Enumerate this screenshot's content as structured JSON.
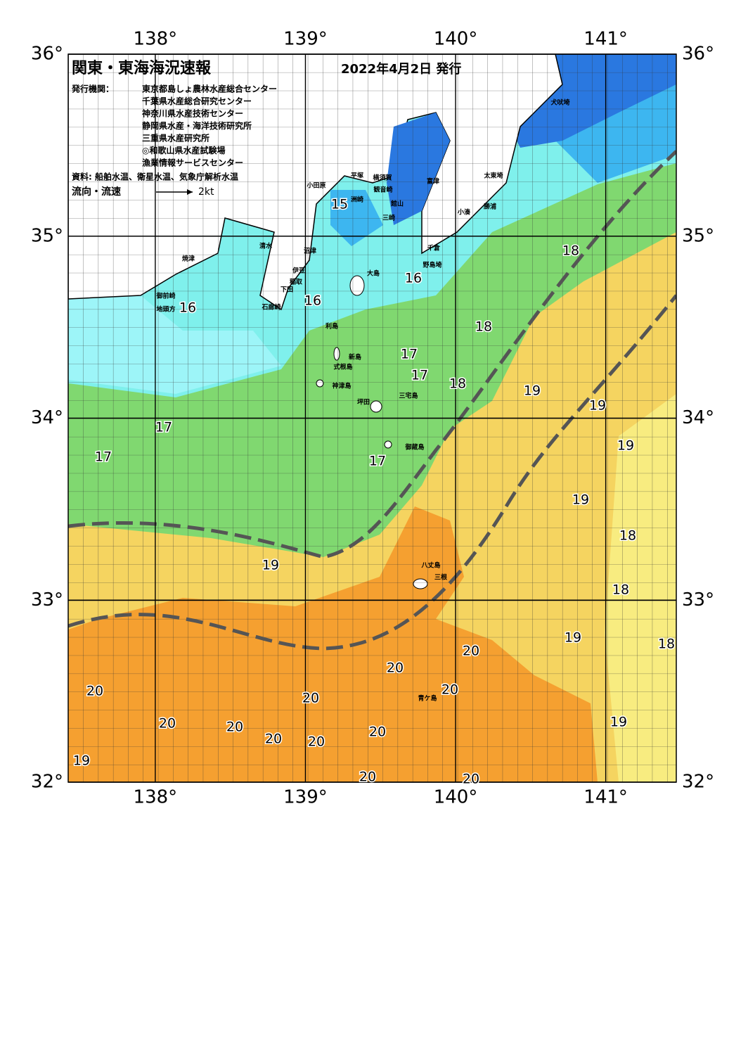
{
  "header": {
    "title": "関東・東海海況速報",
    "date": "2022年4月2日 発行",
    "issuer_label": "発行機関：",
    "issuers": [
      "東京都島しょ農林水産総合センター",
      "千葉県水産総合研究センター",
      "神奈川県水産技術センター",
      "静岡県水産・海洋技術研究所",
      "三重県水産研究所",
      "◎和歌山県水産試験場",
      "漁業情報サービスセンター"
    ],
    "sources": "資料: 船舶水温、衛星水温、気象庁解析水温",
    "current_label": "流向・流速",
    "current_scale": "2kt"
  },
  "map": {
    "lon_ticks": [
      {
        "value": 138,
        "label": "138°"
      },
      {
        "value": 139,
        "label": "139°"
      },
      {
        "value": 140,
        "label": "140°"
      },
      {
        "value": 141,
        "label": "141°"
      }
    ],
    "lat_ticks": [
      {
        "value": 36,
        "label": "36°"
      },
      {
        "value": 35,
        "label": "35°"
      },
      {
        "value": 34,
        "label": "34°"
      },
      {
        "value": 33,
        "label": "33°"
      },
      {
        "value": 32,
        "label": "32°"
      }
    ],
    "lonlim": [
      137.42,
      141.47
    ],
    "latlim": [
      32,
      36
    ],
    "temperature_labels": [
      15,
      16,
      16,
      16,
      18,
      18,
      17,
      17,
      18,
      19,
      19,
      17,
      19,
      17,
      17,
      19,
      18,
      19,
      18,
      19,
      18,
      20,
      20,
      20,
      20,
      20,
      20,
      20,
      20,
      19,
      20,
      20,
      19,
      20,
      20
    ],
    "place_names": [
      "小田原",
      "平塚",
      "横須賀",
      "観音崎",
      "富津",
      "三崎",
      "洲崎",
      "館山",
      "千倉",
      "野島埼",
      "小湊",
      "勝浦",
      "太東埼",
      "犬吠埼",
      "焼津",
      "清水",
      "沼津",
      "伊豆",
      "御前崎",
      "地頭方",
      "稲取",
      "下田",
      "石廊崎",
      "大島",
      "利島",
      "新島",
      "式根島",
      "神津島",
      "三宅島",
      "坪田",
      "御蔵島",
      "八丈島",
      "三根",
      "青ケ島"
    ]
  }
}
